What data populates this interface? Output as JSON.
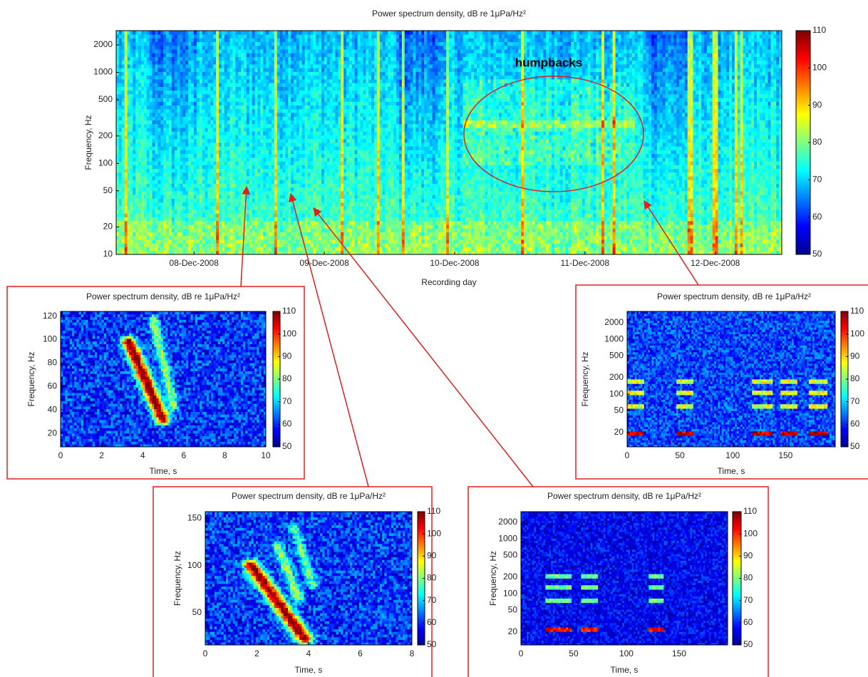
{
  "chart_data": [
    {
      "type": "spectrogram",
      "title": "Power spectrum density, dB re 1μPa/Hz²",
      "xlabel": "Recording day",
      "ylabel": "Frequency, Hz",
      "xlim": [
        "2008-12-07T09:40",
        "2008-12-12T12:15"
      ],
      "xticks": [
        {
          "value": "2008-12-08T00:00",
          "label": "08-Dec-2008"
        },
        {
          "value": "2008-12-09T00:00",
          "label": "09-Dec-2008"
        },
        {
          "value": "2008-12-10T00:00",
          "label": "10-Dec-2008"
        },
        {
          "value": "2008-12-11T00:00",
          "label": "11-Dec-2008"
        },
        {
          "value": "2008-12-12T00:00",
          "label": "12-Dec-2008"
        }
      ],
      "ylim": [
        10,
        2870
      ],
      "yticks": [
        10,
        20,
        50,
        100,
        200,
        500,
        1000,
        2000
      ],
      "yscale": "log",
      "clim": [
        50,
        110
      ],
      "cticks": [
        50,
        60,
        70,
        80,
        90,
        100,
        110
      ],
      "annotation": "humpbacks"
    },
    {
      "type": "spectrogram",
      "title": "Power spectrum density, dB re 1μPa/Hz²",
      "xlabel": "Time, s",
      "ylabel": "Frequency, Hz",
      "xlim": [
        0,
        10
      ],
      "xticks": [
        0,
        2,
        4,
        6,
        8,
        10
      ],
      "ylim": [
        8.5,
        124
      ],
      "yticks": [
        20,
        40,
        60,
        80,
        100,
        120
      ],
      "yscale": "linear",
      "clim": [
        50,
        110
      ],
      "cticks": [
        50,
        60,
        70,
        80,
        90,
        100,
        110
      ]
    },
    {
      "type": "spectrogram",
      "title": "Power spectrum density, dB re 1μPa/Hz²",
      "xlabel": "Time, s",
      "ylabel": "Frequency, Hz",
      "xlim": [
        0,
        197
      ],
      "xticks": [
        0,
        50,
        100,
        150
      ],
      "ylim": [
        11,
        3230
      ],
      "yticks": [
        20,
        50,
        100,
        200,
        500,
        1000,
        2000
      ],
      "yscale": "log",
      "clim": [
        50,
        110
      ],
      "cticks": [
        50,
        60,
        70,
        80,
        90,
        100,
        110
      ]
    },
    {
      "type": "spectrogram",
      "title": "Power spectrum density, dB re 1μPa/Hz²",
      "xlabel": "Time, s",
      "ylabel": "Frequency, Hz",
      "xlim": [
        0,
        8
      ],
      "xticks": [
        0,
        2,
        4,
        6,
        8
      ],
      "ylim": [
        16,
        157
      ],
      "yticks": [
        50,
        100,
        150
      ],
      "yscale": "linear",
      "clim": [
        50,
        110
      ],
      "cticks": [
        50,
        60,
        70,
        80,
        90,
        100,
        110
      ]
    },
    {
      "type": "spectrogram",
      "title": "Power spectrum density, dB re 1μPa/Hz²",
      "xlabel": "Time, s",
      "ylabel": "Frequency, Hz",
      "xlim": [
        0,
        196
      ],
      "xticks": [
        0,
        50,
        100,
        150
      ],
      "ylim": [
        11.7,
        3130
      ],
      "yticks": [
        20,
        50,
        100,
        200,
        500,
        1000,
        2000
      ],
      "yscale": "log",
      "clim": [
        50,
        110
      ],
      "cticks": [
        50,
        60,
        70,
        80,
        90,
        100,
        110
      ]
    }
  ]
}
